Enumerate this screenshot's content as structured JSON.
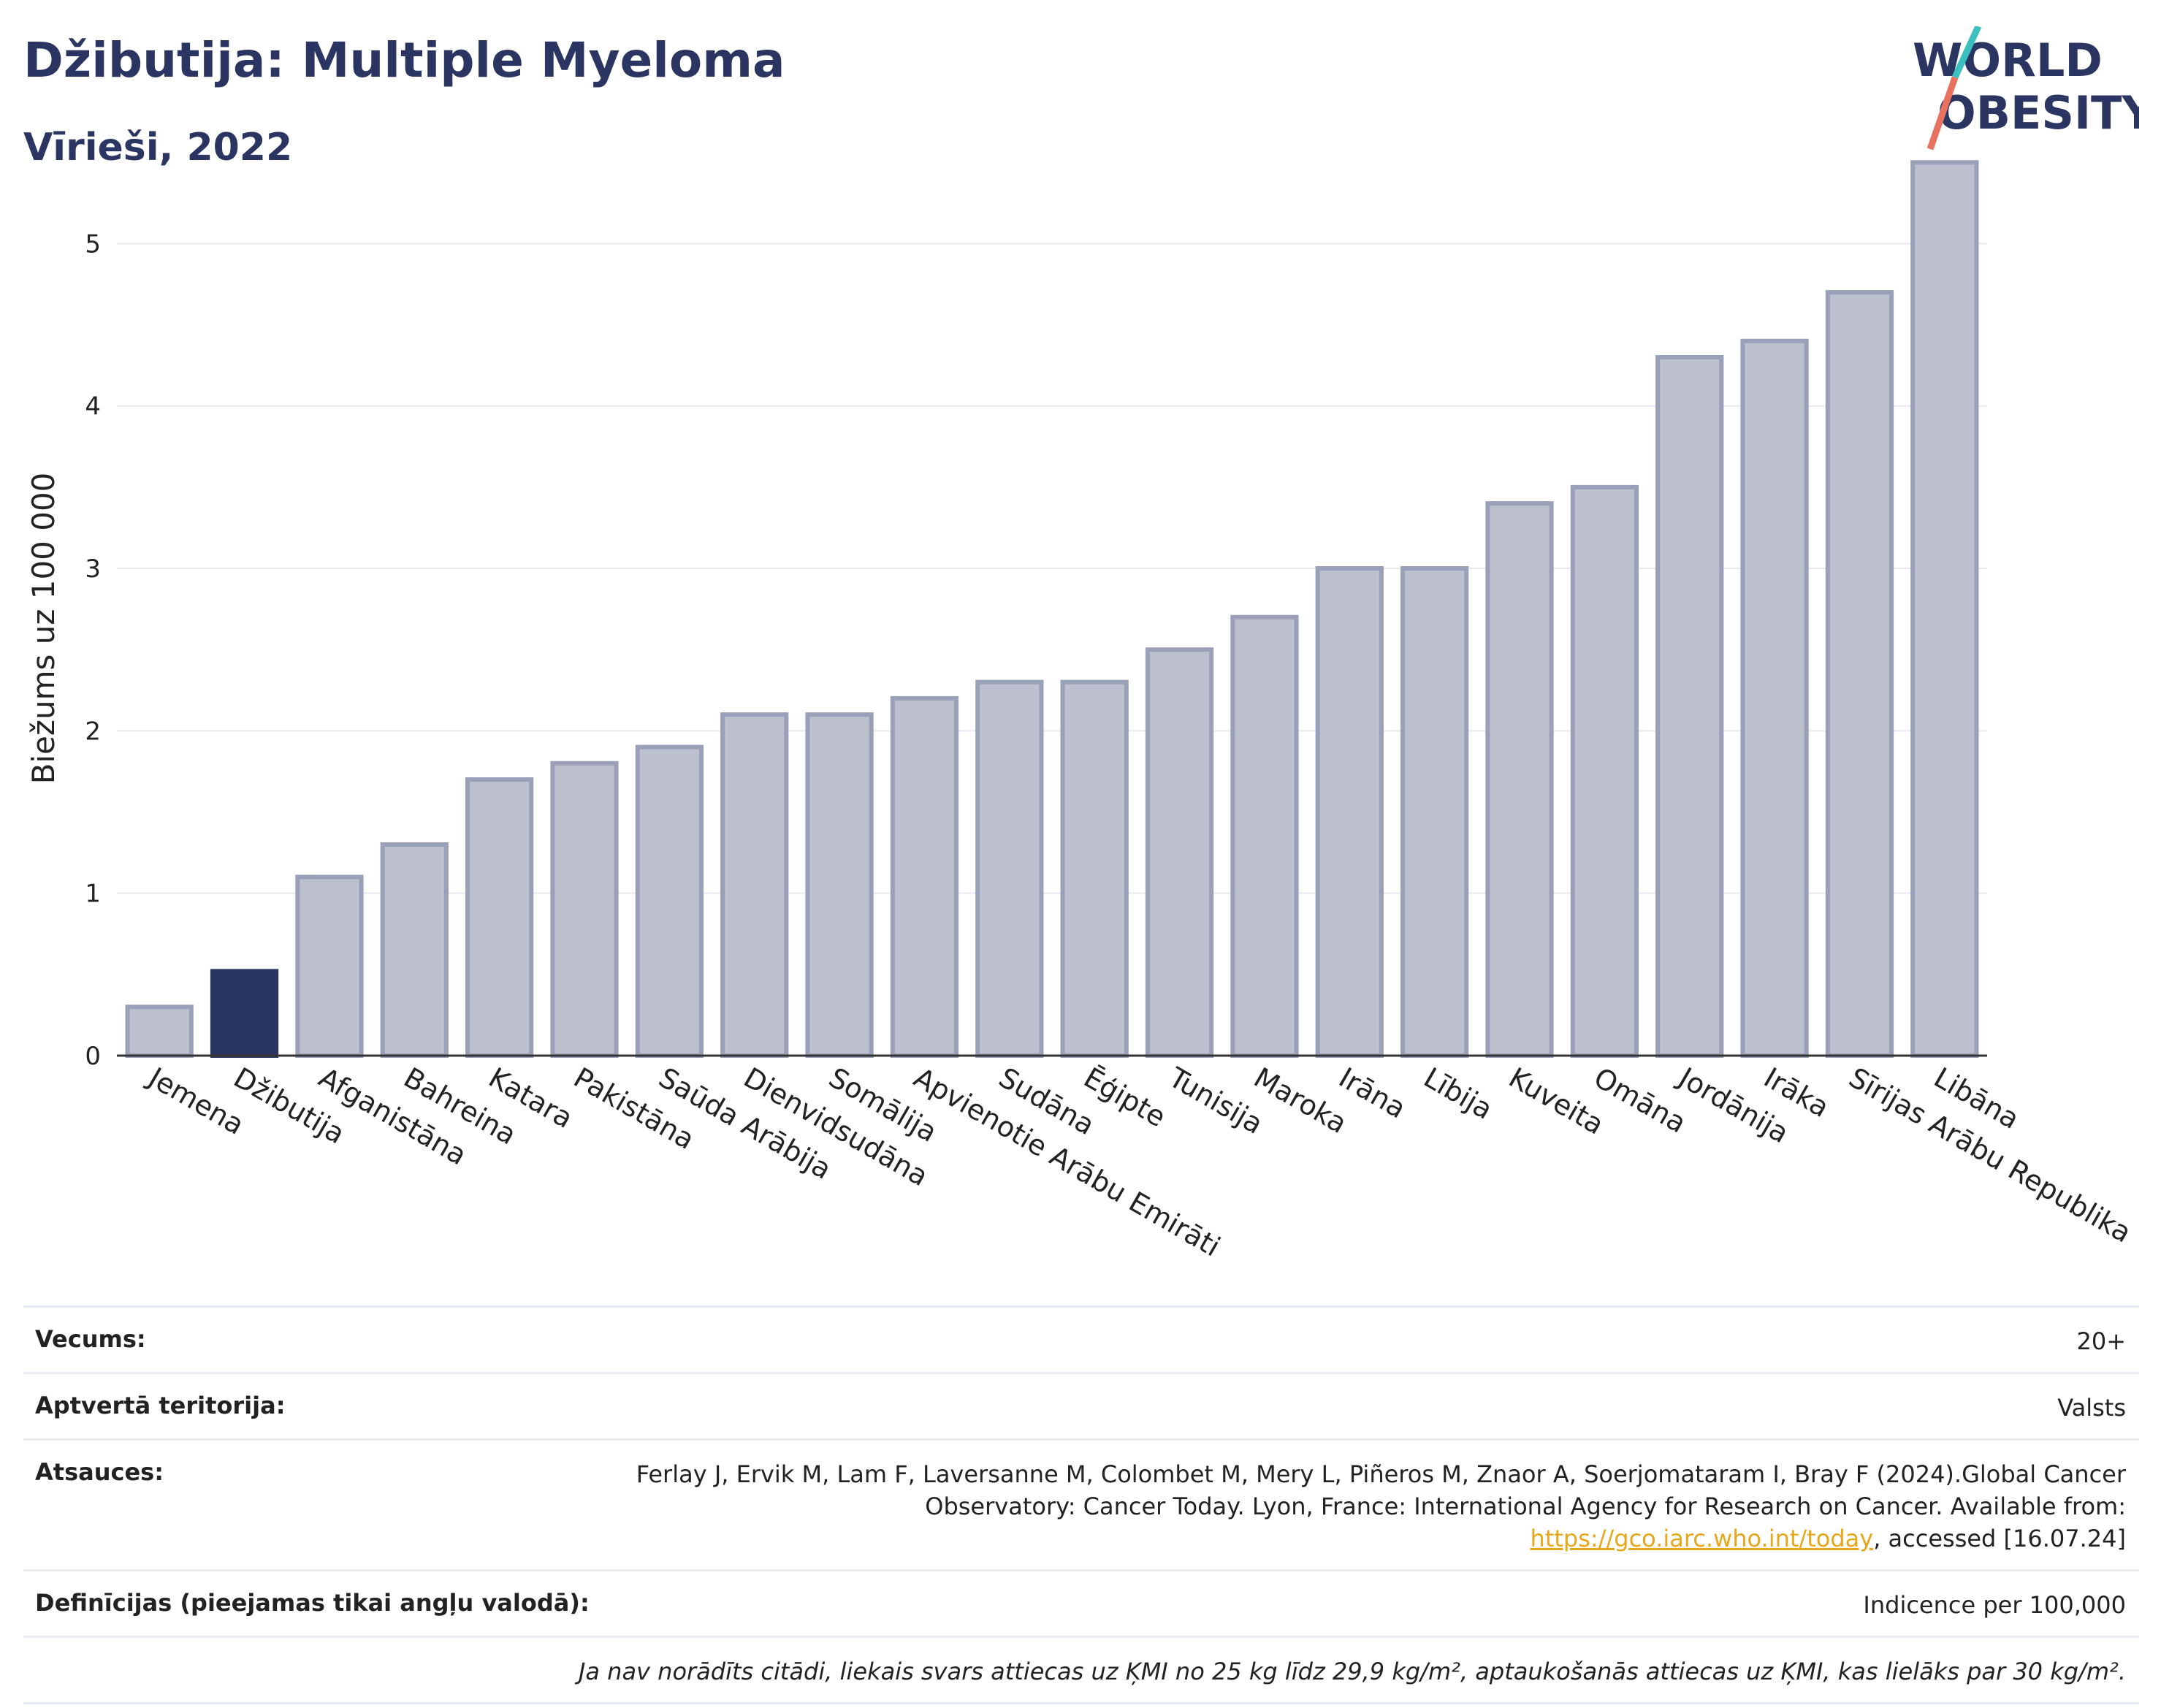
{
  "header": {
    "title": "Džibutija: Multiple Myeloma",
    "subtitle": "Vīrieši, 2022",
    "logo_text_top": "WORLD",
    "logo_text_bottom": "OBESITY"
  },
  "colors": {
    "highlight": "#2b3561",
    "bar_fill": "#bcc0cf",
    "bar_stroke": "#9aa0b8",
    "title": "#2b3561",
    "logo_teal": "#3bbfbf",
    "logo_coral": "#e8715f"
  },
  "chart_data": {
    "type": "bar",
    "ylabel": "Biežums uz 100 000",
    "ylim": [
      0,
      5.6
    ],
    "yticks": [
      0,
      1,
      2,
      3,
      4,
      5
    ],
    "grid": true,
    "highlight_category": "Džibutija",
    "categories": [
      "Jemena",
      "Džibutija",
      "Afganistāna",
      "Bahreina",
      "Katara",
      "Pakistāna",
      "Saūda Arābija",
      "Dienvidsudāna",
      "Somālija",
      "Apvienotie Arābu Emirāti",
      "Sudāna",
      "Ēģipte",
      "Tunisija",
      "Maroka",
      "Irāna",
      "Lībija",
      "Kuveita",
      "Omāna",
      "Jordānija",
      "Irāka",
      "Sīrijas Arābu Republika",
      "Libāna"
    ],
    "values": [
      0.3,
      0.52,
      1.1,
      1.3,
      1.7,
      1.8,
      1.9,
      2.1,
      2.1,
      2.2,
      2.3,
      2.3,
      2.5,
      2.7,
      3.0,
      3.0,
      3.4,
      3.5,
      4.3,
      4.4,
      4.7,
      5.5
    ]
  },
  "info": {
    "age_label": "Vecums:",
    "age_value": "20+",
    "coverage_label": "Aptvertā teritorija:",
    "coverage_value": "Valsts",
    "refs_label": "Atsauces:",
    "refs_text": "Ferlay J, Ervik M, Lam F, Laversanne M, Colombet M, Mery L, Piñeros M, Znaor A, Soerjomataram I, Bray F (2024).Global Cancer Observatory: Cancer Today. Lyon, France: International Agency for Research on Cancer. Available from: ",
    "refs_link": "https://gco.iarc.who.int/today",
    "refs_tail": ", accessed [16.07.24]",
    "defs_label": "Definīcijas (pieejamas tikai angļu valodā):",
    "defs_value": "Indicence per 100,000",
    "note": "Ja nav norādīts citādi, liekais svars attiecas uz ĶMI no 25 kg līdz 29,9 kg/m², aptaukošanās attiecas uz ĶMI, kas lielāks par 30 kg/m²."
  }
}
